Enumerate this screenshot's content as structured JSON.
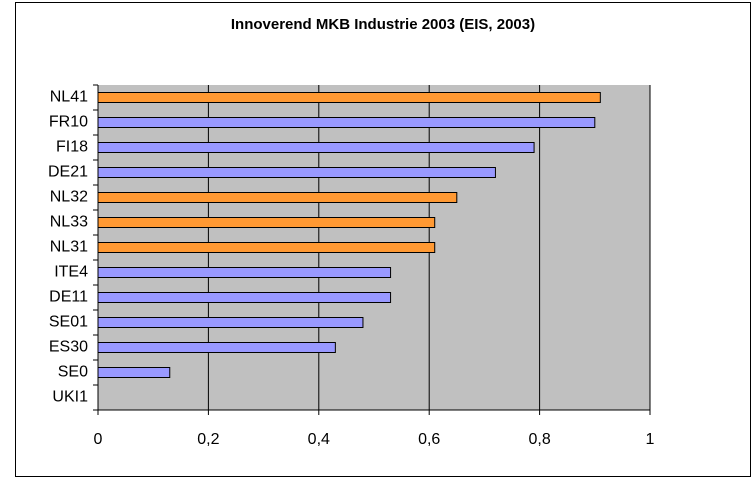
{
  "chart_data": {
    "type": "hbar",
    "title": "Innoverend MKB Industrie 2003 (EIS, 2003)",
    "categories": [
      "NL41",
      "FR10",
      "FI18",
      "DE21",
      "NL32",
      "NL33",
      "NL31",
      "ITE4",
      "DE11",
      "SE01",
      "ES30",
      "SE0",
      "UKI1"
    ],
    "values": [
      0.91,
      0.9,
      0.79,
      0.72,
      0.65,
      0.61,
      0.61,
      0.53,
      0.53,
      0.48,
      0.43,
      0.13,
      0
    ],
    "colors": [
      "#ff9933",
      "#9999ff",
      "#9999ff",
      "#9999ff",
      "#ff9933",
      "#ff9933",
      "#ff9933",
      "#9999ff",
      "#9999ff",
      "#9999ff",
      "#9999ff",
      "#9999ff",
      "#9999ff"
    ],
    "xlim": [
      0,
      1
    ],
    "xticks": [
      0,
      {
        "value": 0.2,
        "label": "0,2"
      },
      {
        "value": 0.4,
        "label": "0,4"
      },
      {
        "value": 0.6,
        "label": "0,6"
      },
      {
        "value": 0.8,
        "label": "0,8"
      },
      1
    ],
    "grid": true
  }
}
